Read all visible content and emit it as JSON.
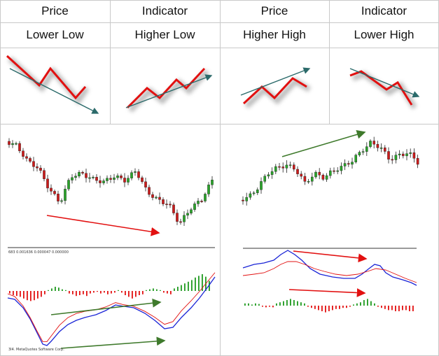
{
  "header_row": [
    {
      "label": "Price"
    },
    {
      "label": "Indicator"
    },
    {
      "label": "Price"
    },
    {
      "label": "Indicator"
    }
  ],
  "pattern_row": [
    {
      "label": "Lower Low"
    },
    {
      "label": "Higher Low"
    },
    {
      "label": "Higher High"
    },
    {
      "label": "Lower High"
    }
  ],
  "left_chart": {
    "indicator_readout": "683 0.001636 0.000047 0.000000",
    "watermark": "3I4. MetaQuotes Software Corp."
  },
  "colors": {
    "price_line": "#e21010",
    "trend_arrow": "#2b6a6a",
    "divergence_green": "#3f7a2c",
    "divergence_red": "#e21010",
    "macd_blue": "#1a24d6",
    "signal_red": "#e21010",
    "hist_green": "#1f9a1f",
    "hist_red": "#e21010",
    "candle_bull": "#2aa52a",
    "candle_bear": "#cc1b1b"
  },
  "icons": [
    "lower-low-diagram",
    "higher-low-diagram",
    "higher-high-diagram",
    "lower-high-diagram"
  ]
}
